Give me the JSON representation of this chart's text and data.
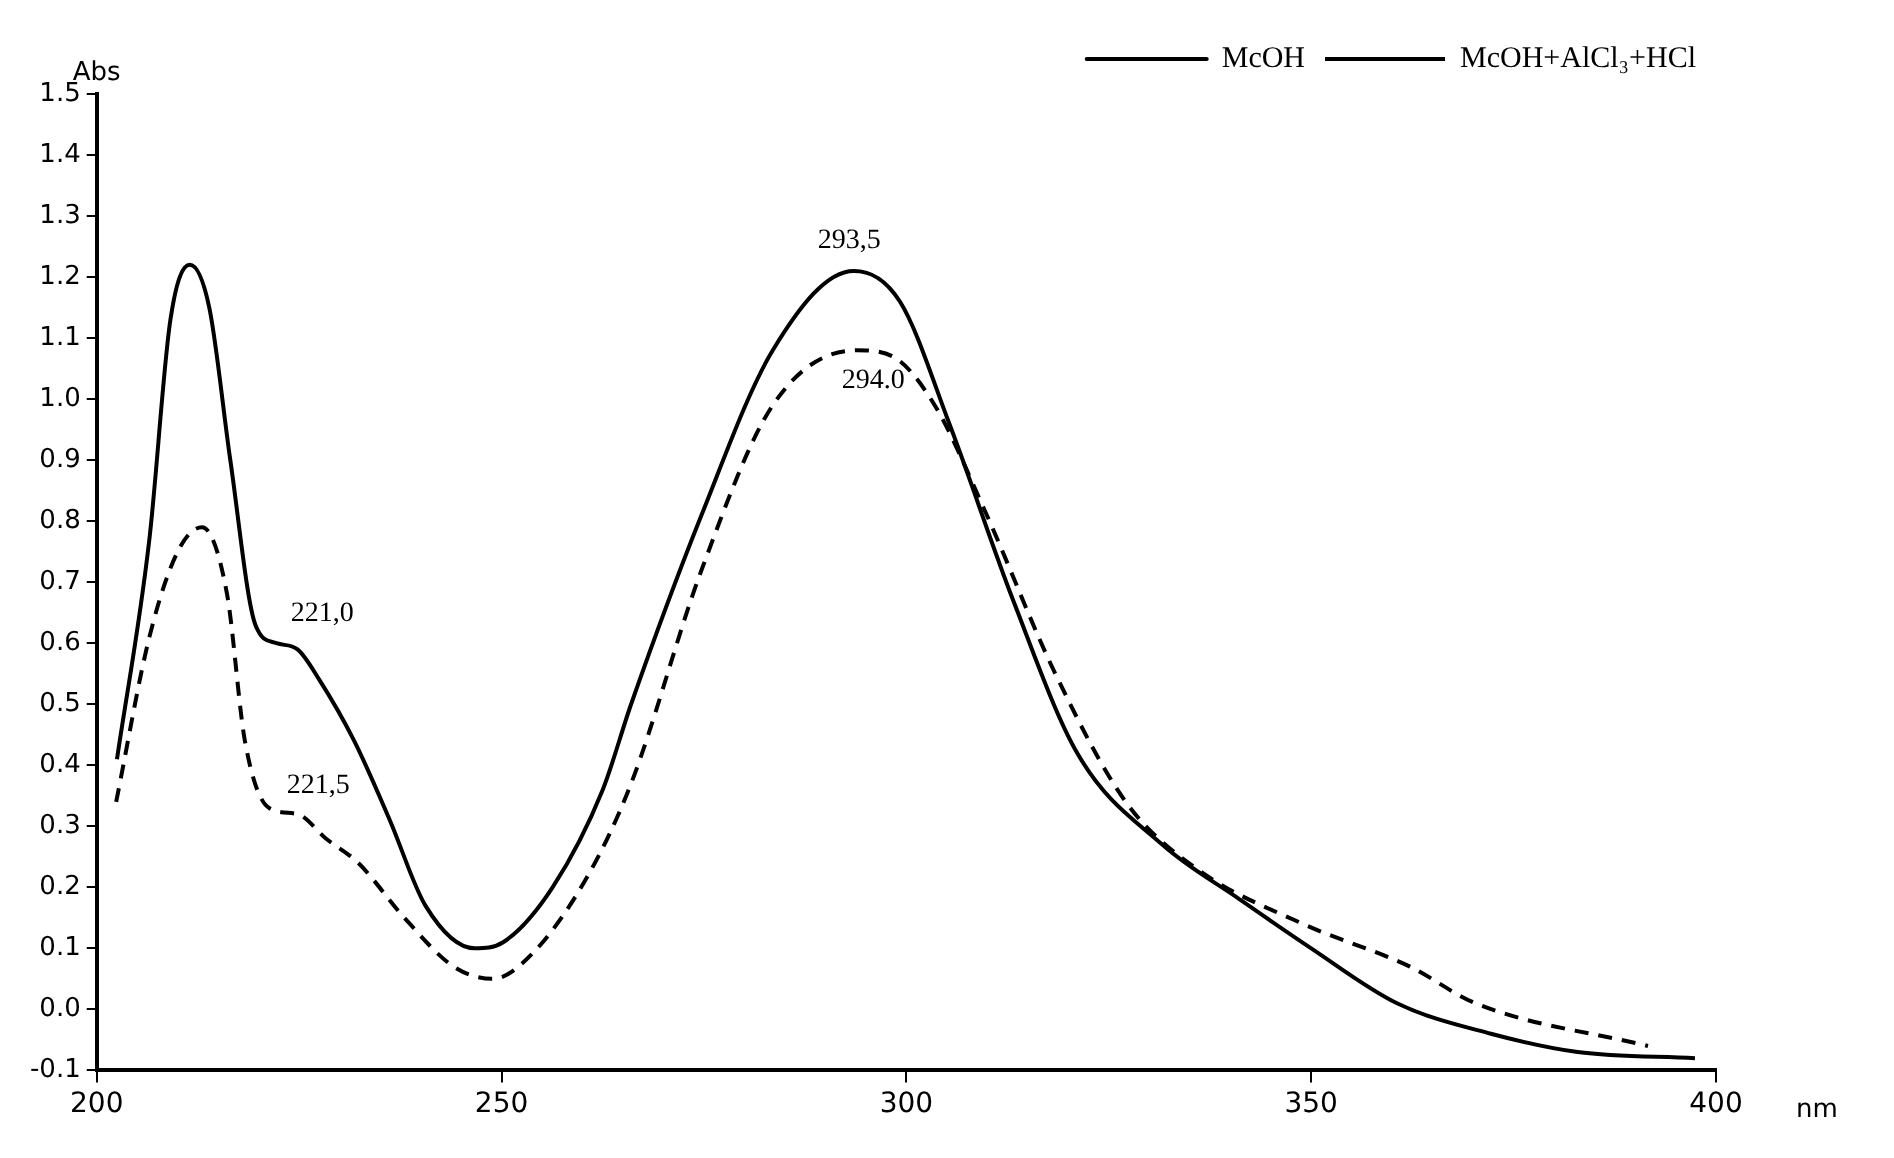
{
  "chart_data": {
    "type": "line",
    "xlabel": "nm",
    "ylabel": "Abs",
    "xlim": [
      200,
      400
    ],
    "xticks": [
      200,
      250,
      300,
      350,
      400
    ],
    "ylim": [
      -0.1,
      1.5
    ],
    "yticks": [
      -0.1,
      {
        "value": 0,
        "label": "0.0"
      },
      0.1,
      0.2,
      0.3,
      0.4,
      0.5,
      0.6,
      0.7,
      0.8,
      0.9,
      {
        "value": 1,
        "label": "1.0"
      },
      1.1,
      1.2,
      1.3,
      1.4,
      1.5
    ],
    "grid": false,
    "legend": "top right",
    "marker": "none",
    "series": [
      {
        "name": "McOH",
        "color": "#000000",
        "line_style": "solid",
        "x": [
          202.5,
          206.5,
          209.1,
          211.5,
          213.9,
          216.5,
          219.6,
          222.2,
          224.8,
          227.5,
          231.8,
          236.2,
          240.6,
          246.7,
          250.2,
          256.3,
          262.5,
          266.0,
          274.7,
          283.5,
          293.5,
          299.2,
          305.3,
          313.2,
          321.1,
          331.6,
          341.2,
          350.0,
          360.6,
          372.2,
          382.9,
          397.4
        ],
        "values": [
          0.41,
          0.77,
          1.13,
          1.22,
          1.15,
          0.9,
          0.63,
          0.6,
          0.59,
          0.54,
          0.44,
          0.31,
          0.17,
          0.1,
          0.11,
          0.2,
          0.36,
          0.5,
          0.81,
          1.08,
          1.21,
          1.16,
          0.96,
          0.67,
          0.42,
          0.27,
          0.18,
          0.1,
          0.01,
          -0.04,
          -0.07,
          -0.08
        ]
      },
      {
        "name": "McOH+AlCl₃+HCl",
        "color": "#000000",
        "line_style": "dashed",
        "x": [
          202.4,
          206.5,
          210,
          213,
          216.1,
          218.3,
          221.3,
          224.8,
          228.3,
          232.3,
          238,
          244.1,
          248.9,
          253.7,
          260.7,
          266,
          274.7,
          283.5,
          293.9,
          298.3,
          303.5,
          309.6,
          318.4,
          327.1,
          335.9,
          349,
          362.2,
          370.3,
          391.6
        ],
        "values": [
          0.34,
          0.61,
          0.75,
          0.79,
          0.68,
          0.44,
          0.33,
          0.32,
          0.28,
          0.24,
          0.15,
          0.07,
          0.05,
          0.09,
          0.22,
          0.37,
          0.72,
          0.99,
          1.08,
          1.07,
          0.99,
          0.82,
          0.55,
          0.34,
          0.23,
          0.14,
          0.07,
          0.01,
          -0.06
        ]
      }
    ],
    "annotations": [
      {
        "text": "221,0",
        "x": 222,
        "y": 0.6
      },
      {
        "text": "221,5",
        "x": 222,
        "y": 0.33
      },
      {
        "text": "293,5",
        "x": 293.5,
        "y": 1.21
      },
      {
        "text": "294.0",
        "x": 294,
        "y": 1.08
      }
    ]
  }
}
